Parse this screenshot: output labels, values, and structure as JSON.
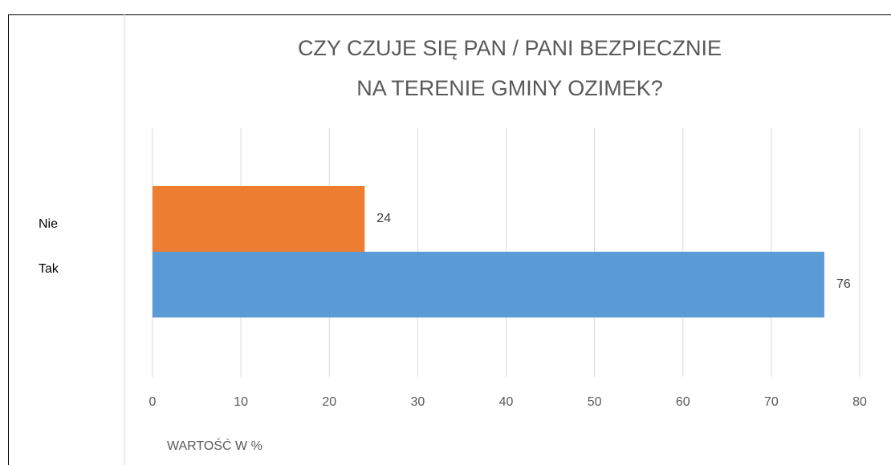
{
  "chart_data": {
    "type": "bar",
    "orientation": "horizontal",
    "title": [
      "CZY CZUJE SIĘ PAN / PANI BEZPIECZNIE",
      "NA TERENIE GMINY OZIMEK?"
    ],
    "x_label": "WARTOŚĆ W %",
    "categories": [
      null
    ],
    "series": [
      {
        "name": "Nie",
        "color": "#ed7d31",
        "values": [
          24
        ]
      },
      {
        "name": "Tak",
        "color": "#5b9bd5",
        "values": [
          76
        ]
      }
    ],
    "xlim": [
      0,
      80
    ],
    "xticks": [
      0,
      10,
      20,
      30,
      40,
      50,
      60,
      70,
      80
    ],
    "grid": true,
    "legend": "left"
  }
}
